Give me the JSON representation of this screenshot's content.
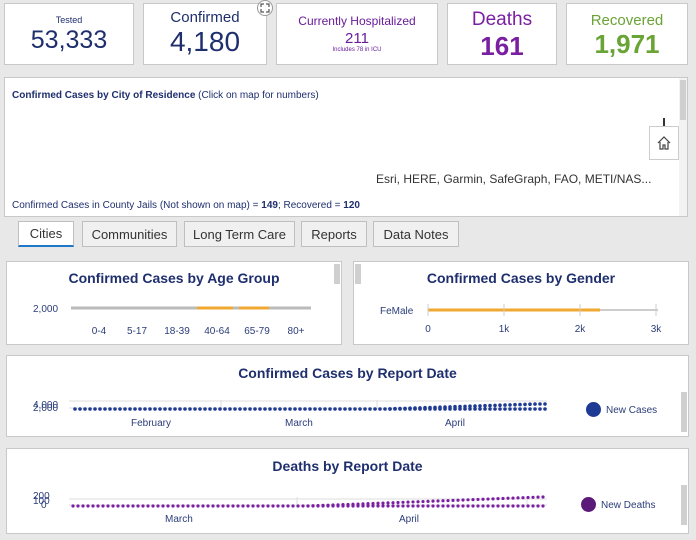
{
  "stats": {
    "tested": {
      "label": "Tested",
      "value": "53,333",
      "color": "#1f2f6e"
    },
    "confirmed": {
      "label": "Confirmed",
      "value": "4,180",
      "color": "#1f2f6e"
    },
    "hospitalized": {
      "label": "Currently Hospitalized",
      "value": "211",
      "note": "Includes 78 in ICU",
      "color": "#6a1b9a"
    },
    "deaths": {
      "label": "Deaths",
      "value": "161",
      "color": "#7b1fa2"
    },
    "recovered": {
      "label": "Recovered",
      "value": "1,971",
      "color": "#6aa336"
    }
  },
  "map": {
    "title": "Confirmed Cases by City of Residence",
    "hint": "(Click on map for numbers)",
    "attribution": "Esri, HERE, Garmin, SafeGraph, FAO, METI/NAS...",
    "jails_text": "Confirmed Cases in County Jails (Not shown on map) = ",
    "jails_count": "149",
    "recovered_text": "; Recovered = ",
    "recovered_count": "120",
    "home_icon": "home-icon",
    "expand_icon": "expand-icon"
  },
  "tabs": [
    {
      "label": "Cities",
      "active": true
    },
    {
      "label": "Communities",
      "active": false
    },
    {
      "label": "Long Term Care",
      "active": false
    },
    {
      "label": "Reports",
      "active": false
    },
    {
      "label": "Data Notes",
      "active": false
    }
  ],
  "age_chart": {
    "title": "Confirmed Cases by Age Group",
    "ytick": "2,000",
    "categories": [
      "0-4",
      "5-17",
      "18-39",
      "40-64",
      "65-79",
      "80+"
    ]
  },
  "gender_chart": {
    "title": "Confirmed Cases by Gender",
    "categories_label": "FeMale",
    "xticks": [
      "0",
      "1k",
      "2k",
      "3k"
    ]
  },
  "report_chart": {
    "title": "Confirmed Cases by Report Date",
    "yticks": [
      "4,000",
      "2,000"
    ],
    "xticks": [
      "February",
      "March",
      "April"
    ],
    "legend": "New Cases",
    "color": "#1f3a93"
  },
  "deaths_chart": {
    "title": "Deaths by Report Date",
    "yticks": [
      "200",
      "100",
      "0"
    ],
    "xticks": [
      "March",
      "April"
    ],
    "legend": "New Deaths",
    "color": "#7b1fa2"
  },
  "chart_data": [
    {
      "type": "bar",
      "title": "Confirmed Cases by Age Group",
      "categories": [
        "0-4",
        "5-17",
        "18-39",
        "40-64",
        "65-79",
        "80+"
      ],
      "yticks": [
        "2,000"
      ]
    },
    {
      "type": "bar",
      "title": "Confirmed Cases by Gender",
      "categories": [
        "FeMale"
      ],
      "xticks": [
        "0",
        "1k",
        "2k",
        "3k"
      ],
      "xlim": [
        0,
        3000
      ]
    },
    {
      "type": "line",
      "title": "Confirmed Cases by Report Date",
      "series": [
        {
          "name": "New Cases"
        }
      ],
      "xticks": [
        "February",
        "March",
        "April"
      ],
      "yticks": [
        "4,000",
        "2,000"
      ]
    },
    {
      "type": "line",
      "title": "Deaths by Report Date",
      "series": [
        {
          "name": "New Deaths"
        }
      ],
      "xticks": [
        "March",
        "April"
      ],
      "yticks": [
        "200",
        "100",
        "0"
      ]
    }
  ]
}
